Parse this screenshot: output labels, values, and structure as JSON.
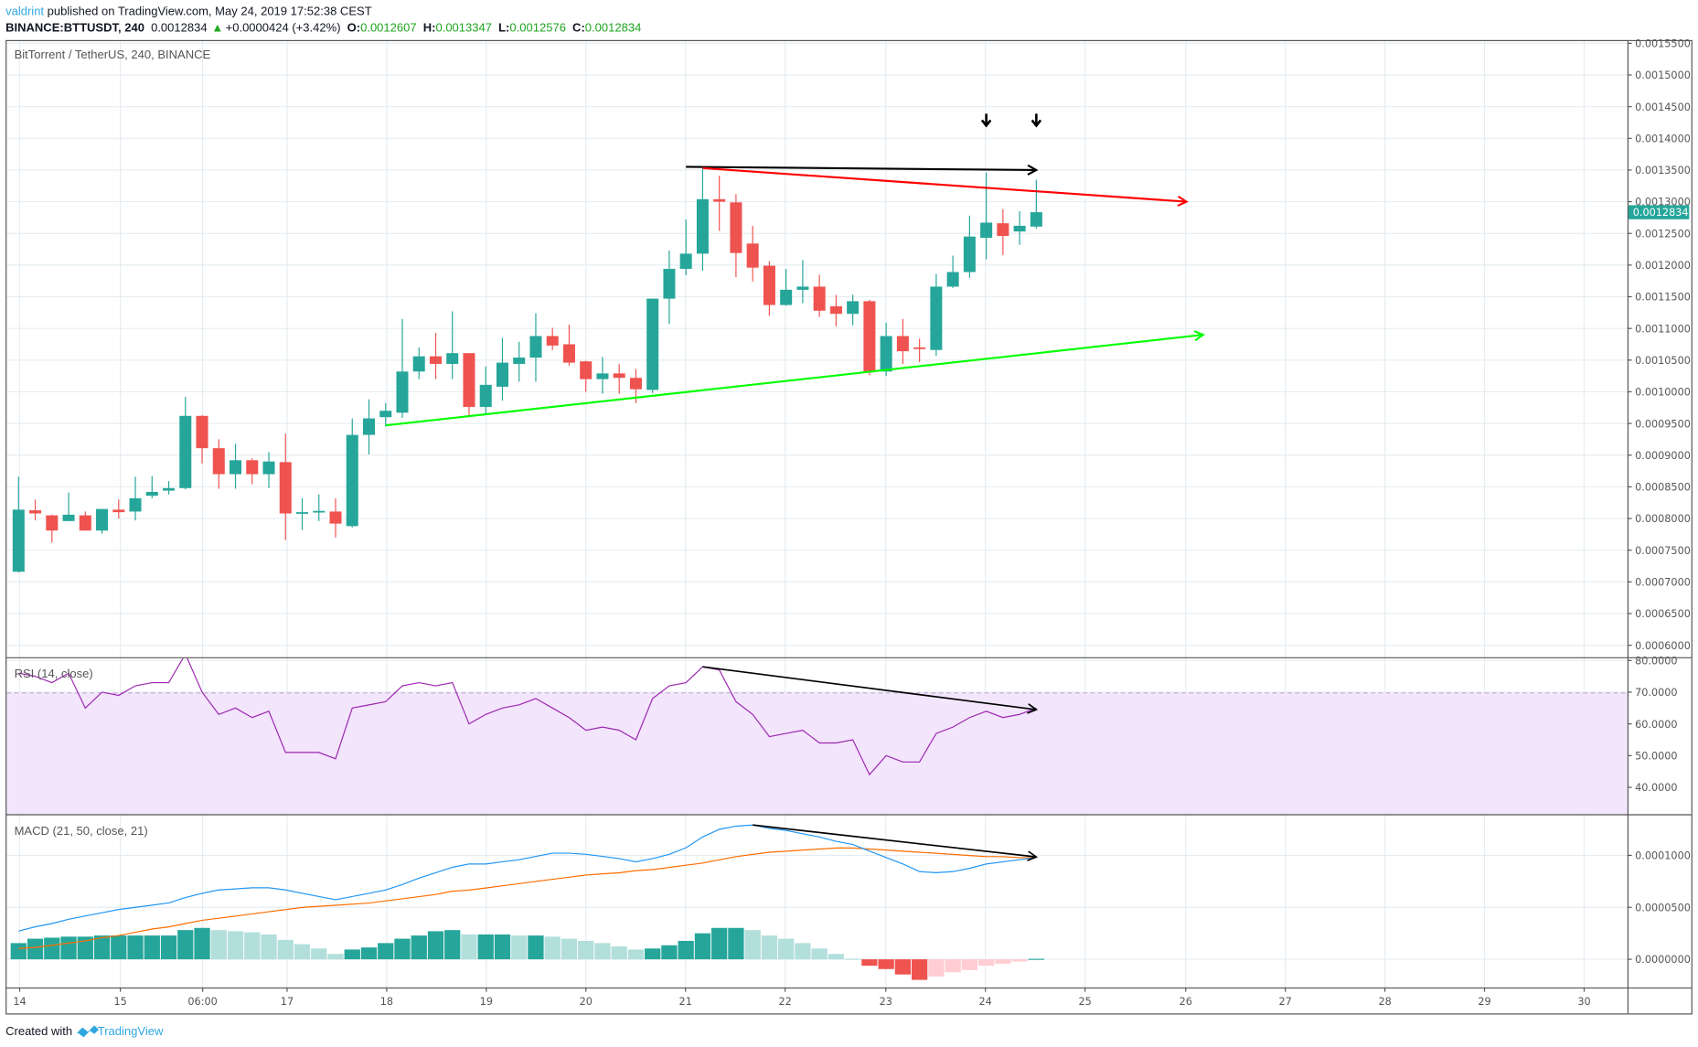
{
  "header": {
    "author": "valdrint",
    "published": "published on TradingView.com, May 24, 2019 17:52:38 CEST",
    "symbol": "BINANCE:BTTUSDT, 240",
    "last": "0.0012834",
    "change": "+0.0000424 (+3.42%)",
    "o_label": "O:",
    "o": "0.0012607",
    "h_label": "H:",
    "h": "0.0013347",
    "l_label": "L:",
    "l": "0.0012576",
    "c_label": "C:",
    "c": "0.0012834"
  },
  "colors": {
    "up": "#26a69a",
    "down": "#ef5350",
    "up_light": "#b2dfdb",
    "down_light": "#ffcdd2",
    "rsi": "#9c27b0",
    "rsi_band": "#f3e5fc",
    "macd": "#2196f3",
    "signal": "#ff6d00",
    "green_line": "#00ff00",
    "red_line": "#ff0000",
    "author": "#2ea7e0",
    "ohlc": "#1fa51f"
  },
  "price_pane": {
    "title": "BitTorrent / TetherUS, 240, BINANCE",
    "ticks": [
      "0.0015500",
      "0.0015000",
      "0.0014500",
      "0.0014000",
      "0.0013500",
      "0.0013000",
      "0.0012500",
      "0.0012000",
      "0.0011500",
      "0.0011000",
      "0.0010500",
      "0.0010000",
      "0.0009500",
      "0.0009000",
      "0.0008500",
      "0.0008000",
      "0.0007500",
      "0.0007000",
      "0.0006500",
      "0.0006000"
    ],
    "last_price_label": "0.0012834"
  },
  "rsi_pane": {
    "title": "RSI (14, close)",
    "ticks": [
      "80.0000",
      "70.0000",
      "60.0000",
      "50.0000",
      "40.0000"
    ]
  },
  "macd_pane": {
    "title": "MACD (21, 50, close, 21)",
    "ticks": [
      "0.0001000",
      "0.0000500",
      "0.0000000"
    ]
  },
  "time_axis": [
    "14",
    "15",
    "06:00",
    "17",
    "18",
    "19",
    "20",
    "21",
    "22",
    "23",
    "24",
    "25",
    "26",
    "27",
    "28",
    "29",
    "30"
  ],
  "footer": {
    "created": "Created with",
    "brand": "TradingView"
  },
  "chart_data": {
    "type": "candlestick",
    "price_range": [
      0.0006,
      0.00155
    ],
    "candles_ohlc": [
      [
        0.000716,
        0.000866,
        0.000715,
        0.000814
      ],
      [
        0.000813,
        0.00083,
        0.000797,
        0.000808
      ],
      [
        0.000805,
        0.000806,
        0.000762,
        0.000781
      ],
      [
        0.000796,
        0.000841,
        0.000796,
        0.000806
      ],
      [
        0.000805,
        0.000811,
        0.000781,
        0.000781
      ],
      [
        0.000781,
        0.000815,
        0.000776,
        0.000815
      ],
      [
        0.000814,
        0.00083,
        0.0008,
        0.00081
      ],
      [
        0.000811,
        0.000866,
        0.000797,
        0.000832
      ],
      [
        0.000836,
        0.000867,
        0.000832,
        0.000842
      ],
      [
        0.000844,
        0.000859,
        0.000838,
        0.000848
      ],
      [
        0.000848,
        0.000992,
        0.000846,
        0.000962
      ],
      [
        0.000962,
        0.000963,
        0.000887,
        0.000911
      ],
      [
        0.000911,
        0.000925,
        0.000847,
        0.00087
      ],
      [
        0.00087,
        0.000918,
        0.000847,
        0.000892
      ],
      [
        0.000892,
        0.000895,
        0.000854,
        0.00087
      ],
      [
        0.00087,
        0.000905,
        0.000848,
        0.00089
      ],
      [
        0.000889,
        0.000934,
        0.000766,
        0.000808
      ],
      [
        0.000808,
        0.000832,
        0.000782,
        0.00081
      ],
      [
        0.00081,
        0.000838,
        0.000796,
        0.000812
      ],
      [
        0.000811,
        0.000832,
        0.00077,
        0.000792
      ],
      [
        0.000788,
        0.000958,
        0.000786,
        0.000932
      ],
      [
        0.000932,
        0.000988,
        0.000901,
        0.000958
      ],
      [
        0.00096,
        0.000982,
        0.000945,
        0.00097
      ],
      [
        0.000967,
        0.001115,
        0.000959,
        0.001032
      ],
      [
        0.001032,
        0.00107,
        0.00102,
        0.001056
      ],
      [
        0.001056,
        0.001093,
        0.00102,
        0.001044
      ],
      [
        0.001044,
        0.001127,
        0.00102,
        0.001061
      ],
      [
        0.001061,
        0.001061,
        0.000963,
        0.000976
      ],
      [
        0.000976,
        0.00104,
        0.000965,
        0.001011
      ],
      [
        0.001008,
        0.001085,
        0.000986,
        0.001046
      ],
      [
        0.001044,
        0.001079,
        0.001016,
        0.001054
      ],
      [
        0.001054,
        0.001124,
        0.001016,
        0.001088
      ],
      [
        0.001088,
        0.001101,
        0.001066,
        0.001073
      ],
      [
        0.001075,
        0.001106,
        0.001041,
        0.001046
      ],
      [
        0.001048,
        0.001049,
        0.001,
        0.00102
      ],
      [
        0.00102,
        0.001055,
        0.000997,
        0.001029
      ],
      [
        0.001029,
        0.001044,
        0.000997,
        0.001022
      ],
      [
        0.001022,
        0.001036,
        0.000982,
        0.001004
      ],
      [
        0.001003,
        0.001147,
        0.000998,
        0.001147
      ],
      [
        0.001147,
        0.001223,
        0.001107,
        0.001194
      ],
      [
        0.001194,
        0.001272,
        0.001184,
        0.001218
      ],
      [
        0.001218,
        0.001353,
        0.001191,
        0.001304
      ],
      [
        0.001304,
        0.001341,
        0.001254,
        0.0013
      ],
      [
        0.001299,
        0.001312,
        0.001181,
        0.001219
      ],
      [
        0.001234,
        0.001262,
        0.001174,
        0.001196
      ],
      [
        0.001199,
        0.001206,
        0.00112,
        0.001137
      ],
      [
        0.001137,
        0.001194,
        0.001136,
        0.001161
      ],
      [
        0.001161,
        0.001208,
        0.00114,
        0.001166
      ],
      [
        0.001166,
        0.001185,
        0.001118,
        0.001128
      ],
      [
        0.001135,
        0.001153,
        0.001103,
        0.001123
      ],
      [
        0.001123,
        0.001153,
        0.001105,
        0.001143
      ],
      [
        0.001143,
        0.001145,
        0.001026,
        0.001032
      ],
      [
        0.001032,
        0.001109,
        0.001025,
        0.001088
      ],
      [
        0.001088,
        0.001115,
        0.001044,
        0.001064
      ],
      [
        0.00107,
        0.001084,
        0.001047,
        0.001068
      ],
      [
        0.001066,
        0.001186,
        0.001057,
        0.001166
      ],
      [
        0.001166,
        0.001215,
        0.001164,
        0.001189
      ],
      [
        0.001189,
        0.001278,
        0.00118,
        0.001245
      ],
      [
        0.001243,
        0.001346,
        0.001209,
        0.001267
      ],
      [
        0.001266,
        0.001288,
        0.001216,
        0.001246
      ],
      [
        0.001253,
        0.001285,
        0.001232,
        0.001262
      ],
      [
        0.0012607,
        0.0013347,
        0.0012576,
        0.0012834
      ]
    ],
    "rsi": [
      76,
      75,
      73,
      76,
      65,
      70,
      69,
      72,
      73,
      73,
      82,
      70,
      63,
      65,
      62,
      64,
      51,
      51,
      51,
      49,
      65,
      66,
      67,
      72,
      73,
      72,
      73,
      60,
      63,
      65,
      66,
      68,
      65,
      62,
      58,
      59,
      58,
      55,
      68,
      72,
      73,
      78,
      77,
      67,
      63,
      56,
      57,
      58,
      54,
      54,
      55,
      44,
      50,
      48,
      48,
      57,
      59,
      62,
      64,
      62,
      63,
      65
    ],
    "rsi_range": [
      30,
      81
    ],
    "rsi_band": [
      30,
      70
    ],
    "macd": [
      2.71e-05,
      3.13e-05,
      3.44e-05,
      3.85e-05,
      4.17e-05,
      4.48e-05,
      4.79e-05,
      5e-05,
      5.21e-05,
      5.42e-05,
      5.94e-05,
      6.35e-05,
      6.67e-05,
      6.77e-05,
      6.88e-05,
      6.88e-05,
      6.67e-05,
      6.35e-05,
      6.04e-05,
      5.73e-05,
      6.04e-05,
      6.35e-05,
      6.67e-05,
      7.19e-05,
      7.81e-05,
      8.33e-05,
      8.85e-05,
      9.17e-05,
      9.17e-05,
      9.38e-05,
      9.58e-05,
      9.9e-05,
      0.0001021,
      0.0001021,
      0.000101,
      9.9e-05,
      9.69e-05,
      9.38e-05,
      9.69e-05,
      0.000101,
      0.0001073,
      0.0001177,
      0.000125,
      0.0001281,
      0.0001292,
      0.000126,
      0.000124,
      0.0001208,
      0.0001177,
      0.0001135,
      0.0001104,
      0.0001042,
      9.79e-05,
      9.17e-05,
      8.44e-05,
      8.33e-05,
      8.44e-05,
      8.75e-05,
      9.17e-05,
      9.38e-05,
      9.58e-05,
      9.79e-05
    ],
    "signal": [
      1.04e-05,
      1.14e-05,
      1.35e-05,
      1.56e-05,
      1.77e-05,
      2.08e-05,
      2.29e-05,
      2.6e-05,
      2.91e-05,
      3.12e-05,
      3.44e-05,
      3.75e-05,
      3.95e-05,
      4.16e-05,
      4.37e-05,
      4.58e-05,
      4.78e-05,
      4.99e-05,
      5.1e-05,
      5.2e-05,
      5.3e-05,
      5.41e-05,
      5.62e-05,
      5.82e-05,
      6.03e-05,
      6.24e-05,
      6.55e-05,
      6.66e-05,
      6.86e-05,
      7.07e-05,
      7.28e-05,
      7.49e-05,
      7.7e-05,
      7.9e-05,
      8.11e-05,
      8.22e-05,
      8.32e-05,
      8.53e-05,
      8.63e-05,
      8.84e-05,
      9.05e-05,
      9.26e-05,
      9.57e-05,
      9.88e-05,
      0.0001009,
      0.000103,
      0.000104,
      0.0001051,
      0.0001061,
      0.0001071,
      0.0001071,
      0.0001061,
      0.0001051,
      0.000104,
      0.000103,
      0.000102,
      0.0001009,
      9.98e-05,
      9.88e-05,
      9.88e-05,
      9.78e-05,
      9.78e-05
    ],
    "histogram": [
      1.56e-05,
      1.98e-05,
      2.08e-05,
      2.18e-05,
      2.18e-05,
      2.29e-05,
      2.29e-05,
      2.29e-05,
      2.29e-05,
      2.29e-05,
      2.81e-05,
      3.02e-05,
      2.81e-05,
      2.7e-05,
      2.6e-05,
      2.39e-05,
      1.87e-05,
      1.46e-05,
      1.04e-05,
      5.2e-06,
      9.4e-06,
      1.14e-05,
      1.56e-05,
      1.98e-05,
      2.29e-05,
      2.7e-05,
      2.81e-05,
      2.39e-05,
      2.39e-05,
      2.39e-05,
      2.29e-05,
      2.29e-05,
      2.18e-05,
      1.98e-05,
      1.77e-05,
      1.56e-05,
      1.25e-05,
      9.4e-06,
      1.04e-05,
      1.35e-05,
      1.77e-05,
      2.5e-05,
      3.02e-05,
      3.02e-05,
      2.81e-05,
      2.29e-05,
      1.98e-05,
      1.56e-05,
      1.04e-05,
      5.2e-06,
      5e-07,
      -6.2e-06,
      -9.4e-06,
      -1.46e-05,
      -1.98e-05,
      -1.66e-05,
      -1.25e-05,
      -1.04e-05,
      -6.2e-06,
      -4.2e-06,
      -2.1e-06,
      5e-07
    ],
    "macd_range": [
      -2.75e-05,
      0.000138
    ],
    "drawings": {
      "black_top_line": {
        "from": [
          40,
          0.001355
        ],
        "to": [
          61,
          0.00135
        ]
      },
      "red_resistance": {
        "from": [
          41,
          0.001353
        ],
        "to": [
          70,
          0.0013
        ]
      },
      "green_support": {
        "from": [
          22,
          0.000947
        ],
        "to": [
          71,
          0.00109
        ]
      },
      "down_arrows_at": [
        58,
        61
      ],
      "rsi_divergence": {
        "from": [
          41,
          78
        ],
        "to": [
          61,
          64.5
        ]
      },
      "macd_divergence": {
        "from": [
          44,
          0.0001292
        ],
        "to": [
          61,
          9.85e-05
        ]
      }
    }
  }
}
